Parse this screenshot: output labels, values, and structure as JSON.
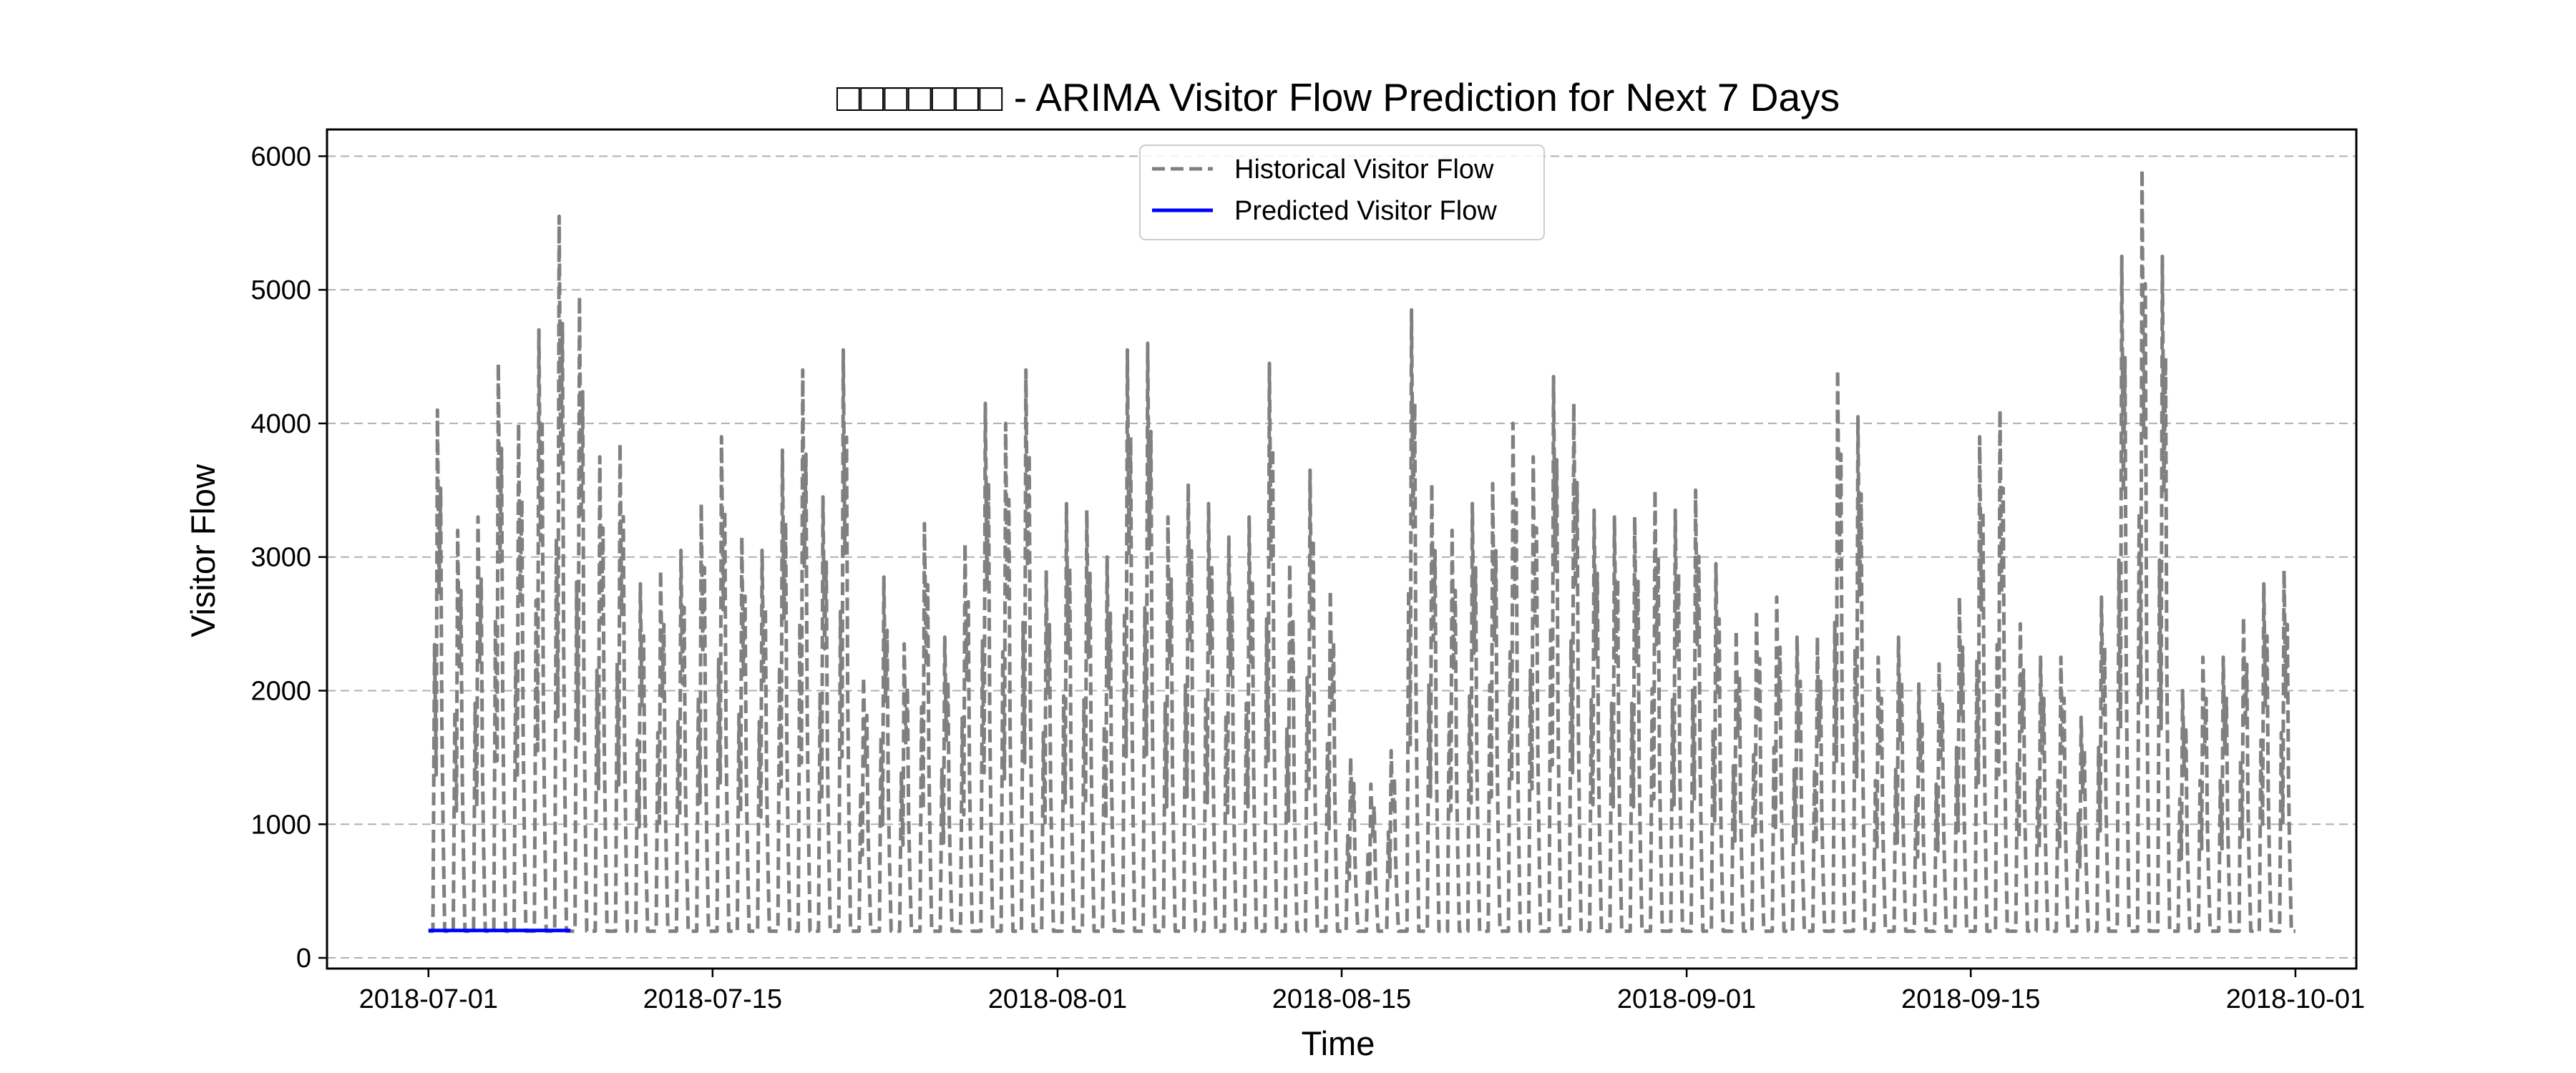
{
  "chart_data": {
    "type": "line",
    "title": "□□□□□□□ - ARIMA Visitor Flow Prediction for Next 7 Days",
    "xlabel": "Time",
    "ylabel": "Visitor Flow",
    "xlim": [
      "2018-06-26",
      "2018-10-04"
    ],
    "ylim": [
      -80,
      6200
    ],
    "y_ticks": [
      0,
      1000,
      2000,
      3000,
      4000,
      5000,
      6000
    ],
    "x_ticks": [
      "2018-07-01",
      "2018-07-15",
      "2018-08-01",
      "2018-08-15",
      "2018-09-01",
      "2018-09-15",
      "2018-10-01"
    ],
    "grid": "y-dashed",
    "legend_position": "top-center",
    "colors": {
      "historical": "#808080",
      "predicted": "#0000ff",
      "grid": "#b0b0b0"
    },
    "series": [
      {
        "name": "Historical Visitor Flow",
        "style": "dashed",
        "baseline": 200,
        "start_date": "2018-07-01",
        "end_date": "2018-09-30",
        "daily_peaks": [
          4100,
          3200,
          3300,
          4450,
          4000,
          4700,
          5550,
          4950,
          3750,
          3850,
          2800,
          2900,
          3050,
          3400,
          3900,
          3150,
          3050,
          3800,
          4400,
          3450,
          4550,
          2100,
          2850,
          2350,
          3250,
          2400,
          3100,
          4150,
          4000,
          4400,
          2900,
          3400,
          3350,
          3000,
          4550,
          4600,
          3300,
          3550,
          3400,
          3150,
          3300,
          4450,
          2950,
          3650,
          2750,
          1500,
          1300,
          1550,
          4850,
          3550,
          3200,
          3400,
          3550,
          4000,
          3750,
          4350,
          4150,
          3350,
          3300,
          3300,
          3500,
          3350,
          3500,
          2950,
          2450,
          2600,
          2700,
          2400,
          2400,
          4400,
          4050,
          2250,
          2400,
          2050,
          2200,
          2700,
          3900,
          4100,
          2500,
          2250,
          2250,
          1800,
          2700,
          5250,
          5900,
          5250,
          2000,
          2250,
          2250,
          2550,
          2800,
          2900
        ]
      },
      {
        "name": "Predicted Visitor Flow",
        "style": "solid",
        "start_date": "2018-07-01",
        "end_date": "2018-07-08",
        "values": [
          205,
          205,
          205,
          205,
          205,
          205,
          205,
          205
        ]
      }
    ]
  }
}
